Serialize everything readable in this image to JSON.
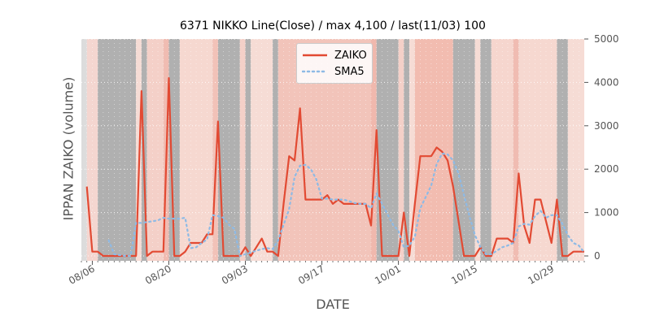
{
  "chart_data": {
    "type": "line",
    "title": "6371 NIKKO Line(Close) / max 4,100 / last(11/03) 100",
    "xlabel": "DATE",
    "ylabel": "IPPAN ZAIKO (volume)",
    "ylim": [
      0,
      5000
    ],
    "yticks": [
      0,
      1000,
      2000,
      3000,
      4000,
      5000
    ],
    "x_range_days": [
      0,
      92
    ],
    "xticks": [
      {
        "day": 2,
        "label": "08/06"
      },
      {
        "day": 16,
        "label": "08/20"
      },
      {
        "day": 30,
        "label": "09/03"
      },
      {
        "day": 44,
        "label": "09/17"
      },
      {
        "day": 58,
        "label": "10/01"
      },
      {
        "day": 72,
        "label": "10/15"
      },
      {
        "day": 86,
        "label": "10/29"
      }
    ],
    "legend": [
      "ZAIKO",
      "SMA5"
    ],
    "legend_position": "top-center",
    "series": [
      {
        "name": "ZAIKO",
        "color": "#E24A33",
        "style": "solid",
        "points": [
          [
            1,
            1600
          ],
          [
            2,
            100
          ],
          [
            3,
            100
          ],
          [
            4,
            0
          ],
          [
            7,
            0
          ],
          [
            8,
            0
          ],
          [
            9,
            0
          ],
          [
            10,
            0
          ],
          [
            11,
            3800
          ],
          [
            12,
            0
          ],
          [
            13,
            100
          ],
          [
            14,
            100
          ],
          [
            15,
            100
          ],
          [
            16,
            4100
          ],
          [
            17,
            0
          ],
          [
            18,
            0
          ],
          [
            19,
            100
          ],
          [
            20,
            300
          ],
          [
            21,
            300
          ],
          [
            22,
            300
          ],
          [
            23,
            500
          ],
          [
            24,
            500
          ],
          [
            25,
            3100
          ],
          [
            26,
            0
          ],
          [
            27,
            0
          ],
          [
            28,
            0
          ],
          [
            29,
            0
          ],
          [
            30,
            200
          ],
          [
            31,
            0
          ],
          [
            32,
            200
          ],
          [
            33,
            400
          ],
          [
            34,
            100
          ],
          [
            35,
            100
          ],
          [
            36,
            0
          ],
          [
            37,
            1200
          ],
          [
            38,
            2300
          ],
          [
            39,
            2200
          ],
          [
            40,
            3400
          ],
          [
            41,
            1300
          ],
          [
            42,
            1300
          ],
          [
            43,
            1300
          ],
          [
            44,
            1300
          ],
          [
            45,
            1400
          ],
          [
            46,
            1200
          ],
          [
            47,
            1300
          ],
          [
            48,
            1200
          ],
          [
            49,
            1200
          ],
          [
            50,
            1200
          ],
          [
            51,
            1200
          ],
          [
            52,
            1200
          ],
          [
            53,
            700
          ],
          [
            54,
            2900
          ],
          [
            55,
            0
          ],
          [
            56,
            0
          ],
          [
            57,
            0
          ],
          [
            58,
            0
          ],
          [
            59,
            1000
          ],
          [
            60,
            0
          ],
          [
            61,
            1200
          ],
          [
            62,
            2300
          ],
          [
            63,
            2300
          ],
          [
            64,
            2300
          ],
          [
            65,
            2500
          ],
          [
            66,
            2400
          ],
          [
            67,
            2200
          ],
          [
            68,
            1600
          ],
          [
            69,
            800
          ],
          [
            70,
            0
          ],
          [
            71,
            0
          ],
          [
            72,
            0
          ],
          [
            73,
            200
          ],
          [
            74,
            0
          ],
          [
            75,
            0
          ],
          [
            76,
            400
          ],
          [
            77,
            400
          ],
          [
            78,
            400
          ],
          [
            79,
            300
          ],
          [
            80,
            1900
          ],
          [
            81,
            700
          ],
          [
            82,
            300
          ],
          [
            83,
            1300
          ],
          [
            84,
            1300
          ],
          [
            85,
            800
          ],
          [
            86,
            300
          ],
          [
            87,
            1300
          ],
          [
            88,
            0
          ],
          [
            89,
            0
          ],
          [
            90,
            100
          ],
          [
            91,
            100
          ],
          [
            92,
            100
          ]
        ]
      },
      {
        "name": "SMA5",
        "color": "#8EBAE5",
        "style": "dotted",
        "points": [
          [
            5,
            360
          ],
          [
            6,
            40
          ],
          [
            7,
            20
          ],
          [
            8,
            0
          ],
          [
            9,
            0
          ],
          [
            10,
            760
          ],
          [
            11,
            760
          ],
          [
            12,
            780
          ],
          [
            13,
            800
          ],
          [
            14,
            820
          ],
          [
            15,
            880
          ],
          [
            16,
            860
          ],
          [
            17,
            860
          ],
          [
            18,
            860
          ],
          [
            19,
            880
          ],
          [
            20,
            180
          ],
          [
            21,
            200
          ],
          [
            22,
            300
          ],
          [
            23,
            380
          ],
          [
            24,
            940
          ],
          [
            25,
            920
          ],
          [
            26,
            880
          ],
          [
            27,
            720
          ],
          [
            28,
            620
          ],
          [
            29,
            0
          ],
          [
            30,
            40
          ],
          [
            31,
            80
          ],
          [
            32,
            120
          ],
          [
            33,
            160
          ],
          [
            34,
            180
          ],
          [
            35,
            160
          ],
          [
            36,
            360
          ],
          [
            37,
            720
          ],
          [
            38,
            1080
          ],
          [
            39,
            1820
          ],
          [
            40,
            2080
          ],
          [
            41,
            2100
          ],
          [
            42,
            2000
          ],
          [
            43,
            1760
          ],
          [
            44,
            1320
          ],
          [
            45,
            1320
          ],
          [
            46,
            1300
          ],
          [
            47,
            1300
          ],
          [
            48,
            1300
          ],
          [
            49,
            1260
          ],
          [
            50,
            1220
          ],
          [
            51,
            1200
          ],
          [
            52,
            1200
          ],
          [
            53,
            1100
          ],
          [
            54,
            1440
          ],
          [
            55,
            1200
          ],
          [
            56,
            960
          ],
          [
            57,
            720
          ],
          [
            58,
            580
          ],
          [
            59,
            200
          ],
          [
            60,
            240
          ],
          [
            61,
            440
          ],
          [
            62,
            1100
          ],
          [
            63,
            1360
          ],
          [
            64,
            1620
          ],
          [
            65,
            2120
          ],
          [
            66,
            2360
          ],
          [
            67,
            2340
          ],
          [
            68,
            2200
          ],
          [
            69,
            1900
          ],
          [
            70,
            1400
          ],
          [
            71,
            920
          ],
          [
            72,
            480
          ],
          [
            73,
            200
          ],
          [
            74,
            40
          ],
          [
            75,
            40
          ],
          [
            76,
            120
          ],
          [
            77,
            200
          ],
          [
            78,
            240
          ],
          [
            79,
            300
          ],
          [
            80,
            680
          ],
          [
            81,
            740
          ],
          [
            82,
            720
          ],
          [
            83,
            920
          ],
          [
            84,
            1040
          ],
          [
            85,
            880
          ],
          [
            86,
            940
          ],
          [
            87,
            940
          ],
          [
            88,
            740
          ],
          [
            89,
            480
          ],
          [
            90,
            300
          ],
          [
            91,
            240
          ],
          [
            92,
            80
          ]
        ]
      }
    ],
    "background_bands": [
      {
        "start": 0,
        "end": 1,
        "color": "#dcdcdc"
      },
      {
        "start": 1,
        "end": 3,
        "color": "#f4d6d0"
      },
      {
        "start": 3,
        "end": 10,
        "color": "#b0b0b0"
      },
      {
        "start": 10,
        "end": 11,
        "color": "#f6dcd5"
      },
      {
        "start": 11,
        "end": 12,
        "color": "#b0b0b0"
      },
      {
        "start": 12,
        "end": 15,
        "color": "#f4d0c8"
      },
      {
        "start": 15,
        "end": 16,
        "color": "#f0bcb2"
      },
      {
        "start": 16,
        "end": 18,
        "color": "#b0b0b0"
      },
      {
        "start": 18,
        "end": 24,
        "color": "#f6d8d0"
      },
      {
        "start": 24,
        "end": 25,
        "color": "#f2c2b8"
      },
      {
        "start": 25,
        "end": 29,
        "color": "#b0b0b0"
      },
      {
        "start": 29,
        "end": 30,
        "color": "#f4d0c8"
      },
      {
        "start": 30,
        "end": 31,
        "color": "#b0b0b0"
      },
      {
        "start": 31,
        "end": 35,
        "color": "#f6dcd5"
      },
      {
        "start": 35,
        "end": 36,
        "color": "#b0b0b0"
      },
      {
        "start": 36,
        "end": 53,
        "color": "#f2c4ba"
      },
      {
        "start": 53,
        "end": 54,
        "color": "#f0b8ad"
      },
      {
        "start": 54,
        "end": 58,
        "color": "#b0b0b0"
      },
      {
        "start": 58,
        "end": 59,
        "color": "#f4d0c8"
      },
      {
        "start": 59,
        "end": 60,
        "color": "#b0b0b0"
      },
      {
        "start": 60,
        "end": 61,
        "color": "#f6dcd5"
      },
      {
        "start": 61,
        "end": 68,
        "color": "#f2bcb0"
      },
      {
        "start": 68,
        "end": 72,
        "color": "#b0b0b0"
      },
      {
        "start": 72,
        "end": 73,
        "color": "#f6dcd5"
      },
      {
        "start": 73,
        "end": 75,
        "color": "#b0b0b0"
      },
      {
        "start": 75,
        "end": 79,
        "color": "#f6d6ce"
      },
      {
        "start": 79,
        "end": 80,
        "color": "#f0bcb2"
      },
      {
        "start": 80,
        "end": 87,
        "color": "#f6d8d0"
      },
      {
        "start": 87,
        "end": 89,
        "color": "#b0b0b0"
      },
      {
        "start": 89,
        "end": 92,
        "color": "#f6dcd5"
      }
    ]
  }
}
